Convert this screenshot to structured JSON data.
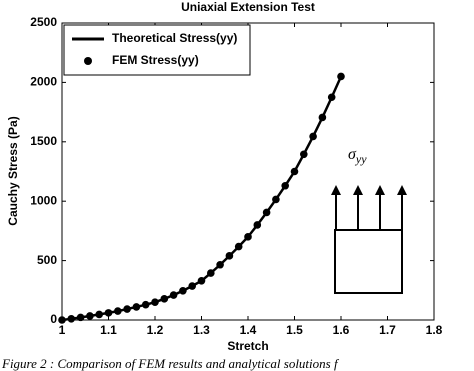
{
  "chart_data": {
    "type": "line_scatter",
    "title": "Uniaxial Extension Test",
    "xlabel": "Stretch",
    "ylabel": "Cauchy Stress (Pa)",
    "x": [
      1.0,
      1.02,
      1.04,
      1.06,
      1.08,
      1.1,
      1.12,
      1.14,
      1.16,
      1.18,
      1.2,
      1.22,
      1.24,
      1.26,
      1.28,
      1.3,
      1.32,
      1.34,
      1.36,
      1.38,
      1.4,
      1.42,
      1.44,
      1.46,
      1.48,
      1.5,
      1.52,
      1.54,
      1.56,
      1.58,
      1.6
    ],
    "series": [
      {
        "name": "Theoretical Stress(yy)",
        "color": "#000000",
        "style": "line",
        "values": [
          0,
          10,
          22,
          34,
          47,
          60,
          75,
          92,
          110,
          129,
          150,
          178,
          210,
          246,
          286,
          330,
          395,
          465,
          540,
          618,
          700,
          800,
          905,
          1015,
          1130,
          1250,
          1395,
          1545,
          1705,
          1875,
          2050
        ]
      },
      {
        "name": "FEM Stress(yy)",
        "color": "#000000",
        "style": "marker",
        "values": [
          0,
          10,
          22,
          34,
          47,
          60,
          75,
          92,
          110,
          129,
          150,
          178,
          210,
          246,
          286,
          330,
          395,
          465,
          540,
          618,
          700,
          800,
          905,
          1015,
          1130,
          1250,
          1395,
          1545,
          1705,
          1875,
          2050
        ]
      }
    ],
    "xlim": [
      1,
      1.8
    ],
    "xticks": [
      1,
      1.1,
      1.2,
      1.3,
      1.4,
      1.5,
      1.6,
      1.7,
      1.8
    ],
    "ylim": [
      0,
      2500
    ],
    "yticks": [
      0,
      500,
      1000,
      1500,
      2000,
      2500
    ],
    "legend": "upper-left",
    "annotation": {
      "symbol": "σ",
      "subscript": "yy"
    },
    "caption": "Figure 2 : Comparison of FEM results and analytical solutions f"
  }
}
